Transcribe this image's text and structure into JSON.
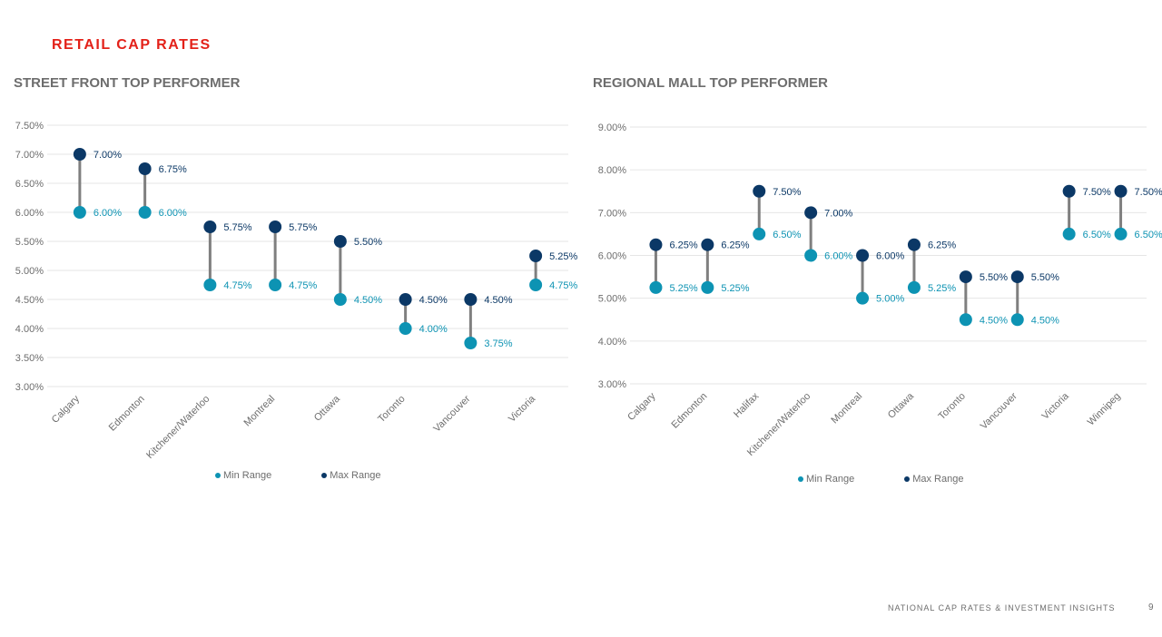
{
  "page": {
    "title": "RETAIL CAP RATES",
    "footer": "NATIONAL CAP RATES & INVESTMENT INSIGHTS",
    "page_number": "9"
  },
  "colors": {
    "min": "#0d93b3",
    "max": "#0b3866",
    "connector": "#7f7f7f",
    "title_red": "#e32119"
  },
  "chart_data": [
    {
      "type": "scatter",
      "title": "STREET FRONT TOP PERFORMER",
      "categories": [
        "Calgary",
        "Edmonton",
        "Kitchener/Waterloo",
        "Montreal",
        "Ottawa",
        "Toronto",
        "Vancouver",
        "Victoria"
      ],
      "series": [
        {
          "name": "Min Range",
          "values": [
            6.0,
            6.0,
            4.75,
            4.75,
            4.5,
            4.0,
            3.75,
            4.75
          ],
          "labels": [
            "6.00%",
            "6.00%",
            "4.75%",
            "4.75%",
            "4.50%",
            "4.00%",
            "3.75%",
            "4.75%"
          ]
        },
        {
          "name": "Max Range",
          "values": [
            7.0,
            6.75,
            5.75,
            5.75,
            5.5,
            4.5,
            4.5,
            5.25
          ],
          "labels": [
            "7.00%",
            "6.75%",
            "5.75%",
            "5.75%",
            "5.50%",
            "4.50%",
            "4.50%",
            "5.25%"
          ]
        }
      ],
      "ylim": [
        3.0,
        7.5
      ],
      "yticks": [
        3.0,
        3.5,
        4.0,
        4.5,
        5.0,
        5.5,
        6.0,
        6.5,
        7.0,
        7.5
      ],
      "ytick_labels": [
        "3.00%",
        "3.50%",
        "4.00%",
        "4.50%",
        "5.00%",
        "5.50%",
        "6.00%",
        "6.50%",
        "7.00%",
        "7.50%"
      ],
      "grid": true,
      "legend": "bottom"
    },
    {
      "type": "scatter",
      "title": "REGIONAL MALL TOP PERFORMER",
      "categories": [
        "Calgary",
        "Edmonton",
        "Halifax",
        "Kitchener/Waterloo",
        "Montreal",
        "Ottawa",
        "Toronto",
        "Vancouver",
        "Victoria",
        "Winnipeg"
      ],
      "series": [
        {
          "name": "Min Range",
          "values": [
            5.25,
            5.25,
            6.5,
            6.0,
            5.0,
            5.25,
            4.5,
            4.5,
            6.5,
            6.5
          ],
          "labels": [
            "5.25%",
            "5.25%",
            "6.50%",
            "6.00%",
            "5.00%",
            "5.25%",
            "4.50%",
            "4.50%",
            "6.50%",
            "6.50%"
          ]
        },
        {
          "name": "Max Range",
          "values": [
            6.25,
            6.25,
            7.5,
            7.0,
            6.0,
            6.25,
            5.5,
            5.5,
            7.5,
            7.5
          ],
          "labels": [
            "6.25%",
            "6.25%",
            "7.50%",
            "7.00%",
            "6.00%",
            "6.25%",
            "5.50%",
            "5.50%",
            "7.50%",
            "7.50%"
          ]
        }
      ],
      "ylim": [
        3.0,
        9.0
      ],
      "yticks": [
        3.0,
        4.0,
        5.0,
        6.0,
        7.0,
        8.0,
        9.0
      ],
      "ytick_labels": [
        "3.00%",
        "4.00%",
        "5.00%",
        "6.00%",
        "7.00%",
        "8.00%",
        "9.00%"
      ],
      "grid": true,
      "legend": "bottom"
    }
  ]
}
